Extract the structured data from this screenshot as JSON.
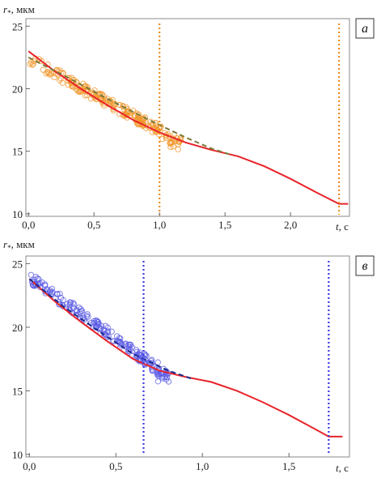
{
  "chart_data": [
    {
      "type": "scatter",
      "panel_label": "а",
      "ylabel_symbol": "r",
      "ylabel_subscript": "*",
      "ylabel_unit": ", мкм",
      "xlabel_symbol": "t",
      "xlabel_unit": ", с",
      "xlim": [
        -0.02,
        2.45
      ],
      "ylim": [
        9.8,
        25.6
      ],
      "x_ticks": [
        0.0,
        0.5,
        1.0,
        1.5,
        2.0
      ],
      "x_tick_labels": [
        "0,0",
        "0,5",
        "1,0",
        "1,5",
        "2,0"
      ],
      "y_ticks": [
        10,
        15,
        20,
        25
      ],
      "y_tick_labels": [
        "10",
        "15",
        "20",
        "25"
      ],
      "grid": false,
      "legend": "none",
      "series": [
        {
          "kind": "points",
          "color": "#f0962a",
          "x_range": [
            0.0,
            1.18
          ],
          "y_start": 22.4,
          "y_end": 15.6,
          "count": 220
        },
        {
          "kind": "line",
          "style": "solid",
          "color": "#e8242a",
          "x": [
            0.0,
            0.2,
            0.4,
            0.6,
            0.8,
            1.0,
            1.2,
            1.4,
            1.6,
            1.8,
            2.0,
            2.2,
            2.37,
            2.44
          ],
          "y": [
            23.0,
            21.4,
            20.0,
            18.7,
            17.5,
            16.5,
            15.7,
            15.1,
            14.6,
            13.8,
            12.8,
            11.7,
            10.8,
            10.8
          ]
        },
        {
          "kind": "line",
          "style": "dashed",
          "color": "#7a7a3a",
          "x": [
            0.0,
            0.3,
            0.6,
            0.9,
            1.2,
            1.4,
            1.55
          ],
          "y": [
            22.5,
            20.9,
            19.2,
            17.6,
            16.1,
            15.2,
            14.7
          ]
        },
        {
          "kind": "vline",
          "style": "dotted",
          "color": "#f08c1e",
          "x": 1.0
        },
        {
          "kind": "vline",
          "style": "dotted",
          "color": "#f08c1e",
          "x": 2.37
        }
      ]
    },
    {
      "type": "scatter",
      "panel_label": "в",
      "ylabel_symbol": "r",
      "ylabel_subscript": "*",
      "ylabel_unit": ", мкм",
      "xlabel_symbol": "t",
      "xlabel_unit": ", с",
      "xlim": [
        -0.02,
        1.85
      ],
      "ylim": [
        9.8,
        25.6
      ],
      "x_ticks": [
        0.0,
        0.5,
        1.0,
        1.5
      ],
      "x_tick_labels": [
        "0,0",
        "0,5",
        "1,0",
        "1,5"
      ],
      "y_ticks": [
        10,
        15,
        20,
        25
      ],
      "y_tick_labels": [
        "10",
        "15",
        "20",
        "25"
      ],
      "grid": false,
      "legend": "none",
      "series": [
        {
          "kind": "points",
          "color": "#5a5ae6",
          "x_range": [
            0.0,
            0.82
          ],
          "y_start": 23.9,
          "y_end": 16.0,
          "count": 200
        },
        {
          "kind": "line",
          "style": "solid",
          "color": "#e8242a",
          "x": [
            0.0,
            0.15,
            0.3,
            0.45,
            0.6,
            0.75,
            0.9,
            1.05,
            1.2,
            1.35,
            1.5,
            1.65,
            1.73,
            1.81
          ],
          "y": [
            23.8,
            22.0,
            20.4,
            18.9,
            17.5,
            16.6,
            16.1,
            15.7,
            15.0,
            14.1,
            13.1,
            12.0,
            11.4,
            11.4
          ]
        },
        {
          "kind": "line",
          "style": "dashed",
          "color": "#1a2a8a",
          "x": [
            0.0,
            0.2,
            0.4,
            0.6,
            0.8,
            0.95
          ],
          "y": [
            23.8,
            21.6,
            19.7,
            17.9,
            16.6,
            15.9
          ]
        },
        {
          "kind": "vline",
          "style": "dotted",
          "color": "#3a3ae6",
          "x": 0.66
        },
        {
          "kind": "vline",
          "style": "dotted",
          "color": "#3a3ae6",
          "x": 1.73
        }
      ]
    }
  ]
}
